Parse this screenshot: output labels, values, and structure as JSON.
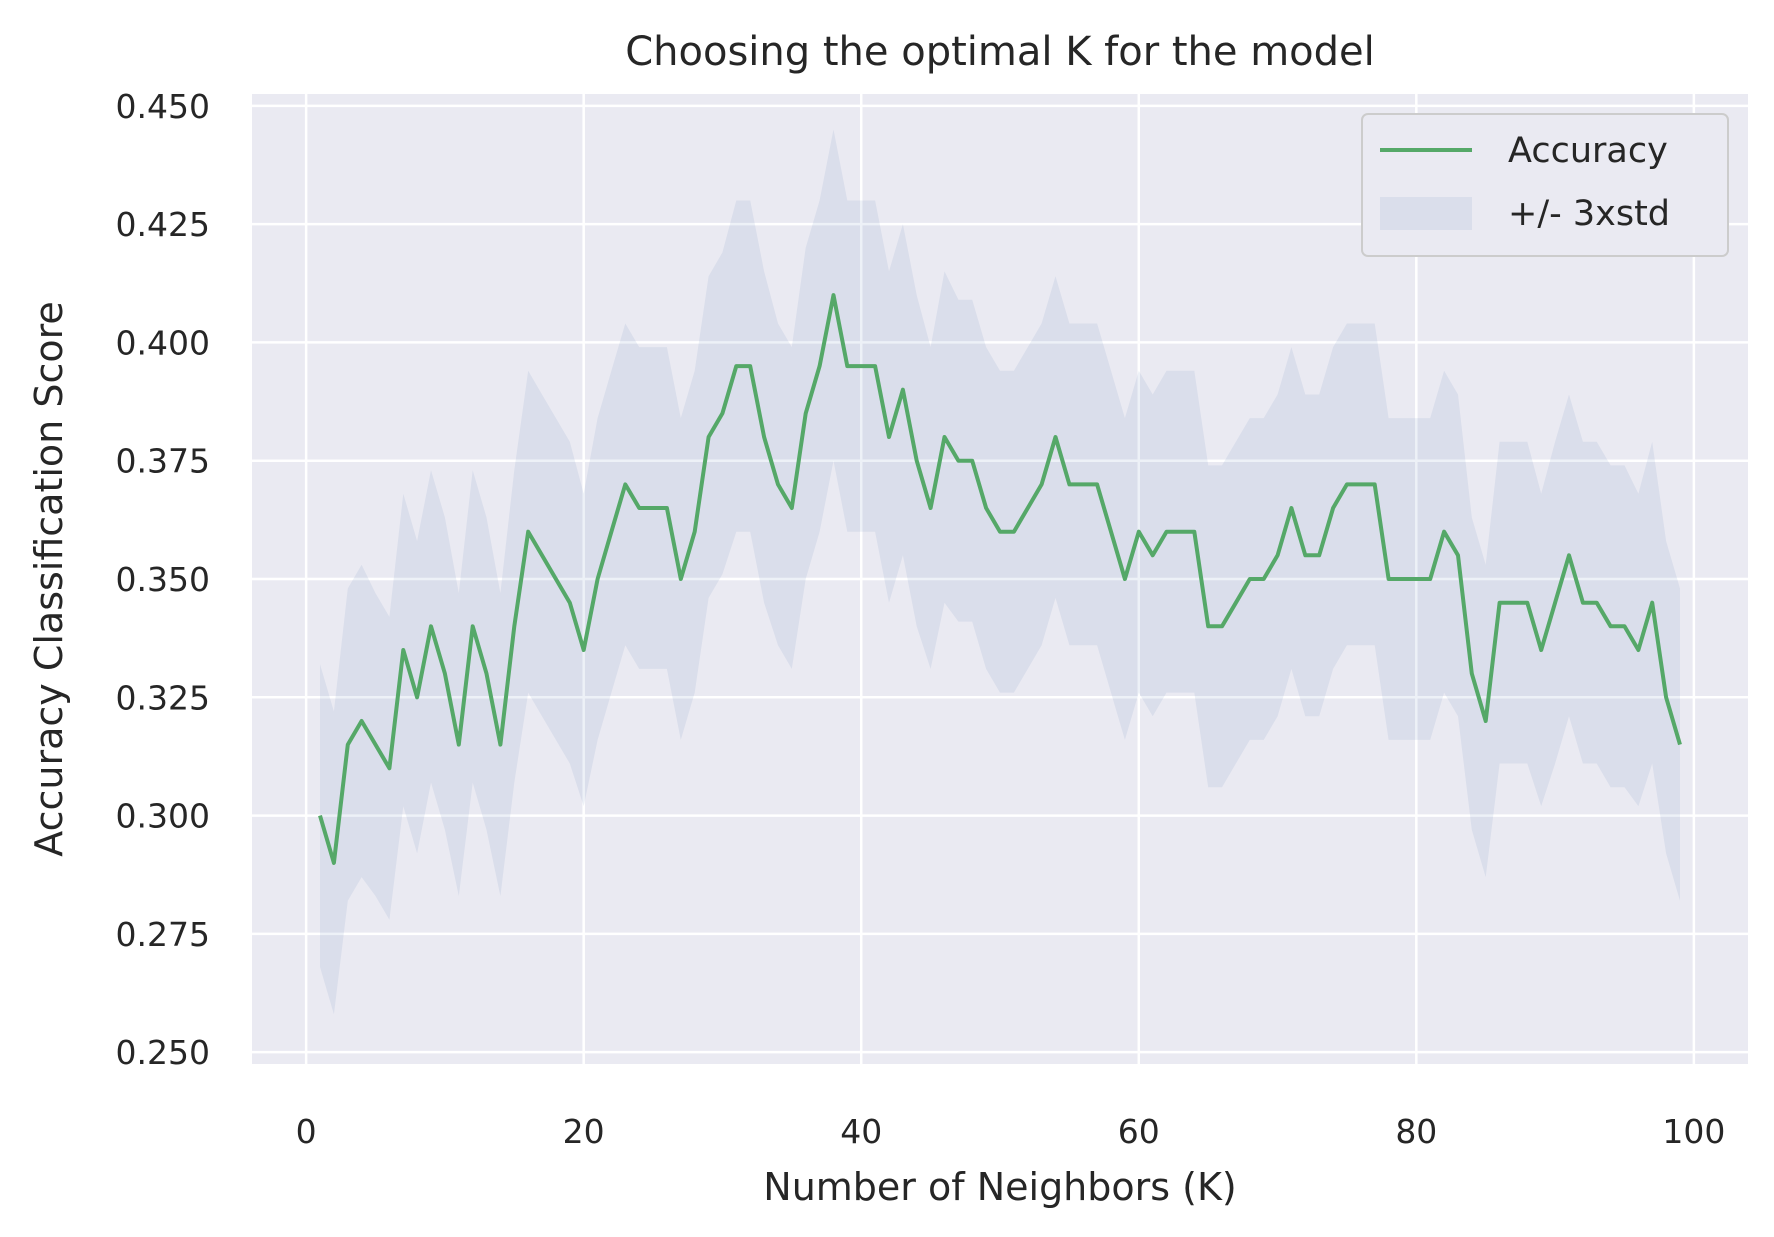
{
  "chart_data": {
    "type": "line",
    "title": "Choosing the optimal K for the model",
    "xlabel": "Number of Neighbors (K)",
    "ylabel": "Accuracy Classification Score",
    "xlim": [
      -3.9,
      103.9
    ],
    "ylim": [
      0.2475,
      0.4525
    ],
    "xticks": [
      0,
      20,
      40,
      60,
      80,
      100
    ],
    "yticks": [
      0.25,
      0.275,
      0.3,
      0.325,
      0.35,
      0.375,
      0.4,
      0.425,
      0.45
    ],
    "x_tick_labels": [
      "0",
      "20",
      "40",
      "60",
      "80",
      "100"
    ],
    "y_tick_labels": [
      "0.250",
      "0.275",
      "0.300",
      "0.325",
      "0.350",
      "0.375",
      "0.400",
      "0.425",
      "0.450"
    ],
    "grid": true,
    "legend_position": "top-right",
    "x": [
      1,
      2,
      3,
      4,
      5,
      6,
      7,
      8,
      9,
      10,
      11,
      12,
      13,
      14,
      15,
      16,
      17,
      18,
      19,
      20,
      21,
      22,
      23,
      24,
      25,
      26,
      27,
      28,
      29,
      30,
      31,
      32,
      33,
      34,
      35,
      36,
      37,
      38,
      39,
      40,
      41,
      42,
      43,
      44,
      45,
      46,
      47,
      48,
      49,
      50,
      51,
      52,
      53,
      54,
      55,
      56,
      57,
      58,
      59,
      60,
      61,
      62,
      63,
      64,
      65,
      66,
      67,
      68,
      69,
      70,
      71,
      72,
      73,
      74,
      75,
      76,
      77,
      78,
      79,
      80,
      81,
      82,
      83,
      84,
      85,
      86,
      87,
      88,
      89,
      90,
      91,
      92,
      93,
      94,
      95,
      96,
      97,
      98,
      99
    ],
    "series": [
      {
        "name": "Accuracy",
        "color": "#55a868",
        "values": [
          0.3,
          0.29,
          0.315,
          0.32,
          0.315,
          0.31,
          0.335,
          0.325,
          0.34,
          0.33,
          0.315,
          0.34,
          0.33,
          0.315,
          0.34,
          0.36,
          0.355,
          0.35,
          0.345,
          0.335,
          0.35,
          0.36,
          0.37,
          0.365,
          0.365,
          0.365,
          0.35,
          0.36,
          0.38,
          0.385,
          0.395,
          0.395,
          0.38,
          0.37,
          0.365,
          0.385,
          0.395,
          0.41,
          0.395,
          0.395,
          0.395,
          0.38,
          0.39,
          0.375,
          0.365,
          0.38,
          0.375,
          0.375,
          0.365,
          0.36,
          0.36,
          0.365,
          0.37,
          0.38,
          0.37,
          0.37,
          0.37,
          0.36,
          0.35,
          0.36,
          0.355,
          0.36,
          0.36,
          0.36,
          0.34,
          0.34,
          0.345,
          0.35,
          0.35,
          0.355,
          0.365,
          0.355,
          0.355,
          0.365,
          0.37,
          0.37,
          0.37,
          0.35,
          0.35,
          0.35,
          0.35,
          0.36,
          0.355,
          0.33,
          0.32,
          0.345,
          0.345,
          0.345,
          0.335,
          0.345,
          0.355,
          0.345,
          0.345,
          0.34,
          0.34,
          0.335,
          0.345,
          0.325,
          0.315
        ]
      },
      {
        "name": "+/- 3xstd",
        "type": "band",
        "color": "#4c72b0",
        "opacity": 0.1,
        "half_width": [
          0.032,
          0.032,
          0.033,
          0.033,
          0.032,
          0.032,
          0.033,
          0.033,
          0.033,
          0.033,
          0.032,
          0.033,
          0.033,
          0.032,
          0.033,
          0.034,
          0.034,
          0.034,
          0.034,
          0.033,
          0.034,
          0.034,
          0.034,
          0.034,
          0.034,
          0.034,
          0.034,
          0.034,
          0.034,
          0.034,
          0.035,
          0.035,
          0.035,
          0.034,
          0.034,
          0.035,
          0.035,
          0.035,
          0.035,
          0.035,
          0.035,
          0.035,
          0.035,
          0.035,
          0.034,
          0.035,
          0.034,
          0.034,
          0.034,
          0.034,
          0.034,
          0.034,
          0.034,
          0.034,
          0.034,
          0.034,
          0.034,
          0.034,
          0.034,
          0.034,
          0.034,
          0.034,
          0.034,
          0.034,
          0.034,
          0.034,
          0.034,
          0.034,
          0.034,
          0.034,
          0.034,
          0.034,
          0.034,
          0.034,
          0.034,
          0.034,
          0.034,
          0.034,
          0.034,
          0.034,
          0.034,
          0.034,
          0.034,
          0.033,
          0.033,
          0.034,
          0.034,
          0.034,
          0.033,
          0.034,
          0.034,
          0.034,
          0.034,
          0.034,
          0.034,
          0.033,
          0.034,
          0.033,
          0.033
        ]
      }
    ]
  }
}
